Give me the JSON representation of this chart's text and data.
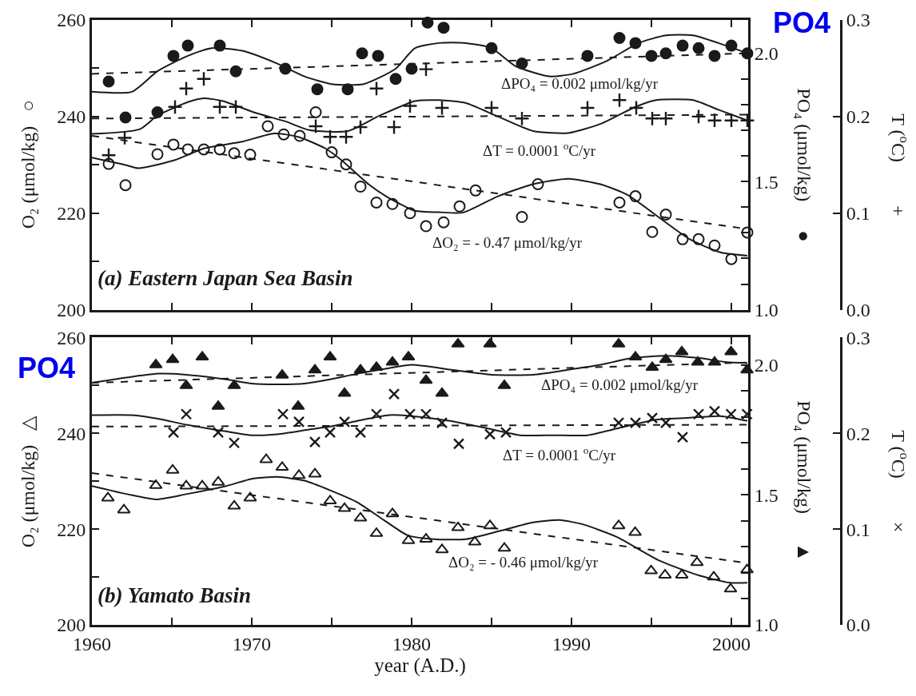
{
  "chart_data": [
    {
      "type": "scatter",
      "tick_labels": "y",
      "ylabel": "O₂ (μmol/kg)   ○",
      "y2label": "PO₄ (μmol/kg)      ●",
      "y3label": "T ($^{o}$C)         +",
      "xlim": [
        1960,
        2001.05
      ],
      "xticks": [
        1960,
        {
          "value": 1965,
          "label": null
        },
        1970,
        {
          "value": 1975,
          "label": null
        },
        1980,
        {
          "value": 1985,
          "label": null
        },
        1990,
        {
          "value": 1995,
          "label": null
        },
        2000
      ],
      "ylim": [
        200,
        260
      ],
      "yticks": [
        200,
        {
          "value": 210,
          "label": null
        },
        220,
        {
          "value": 230,
          "label": null
        },
        240,
        {
          "value": 250,
          "label": null
        },
        260
      ],
      "y2lim": [
        1.0,
        2.13
      ],
      "y2ticks": [
        {
          "value": 1.0,
          "label": "1.0"
        },
        {
          "value": 1.1,
          "label": null
        },
        {
          "value": 1.2,
          "label": null
        },
        {
          "value": 1.3,
          "label": null
        },
        {
          "value": 1.4,
          "label": null
        },
        {
          "value": 1.5,
          "label": "1.5"
        },
        {
          "value": 1.6,
          "label": null
        },
        {
          "value": 1.7,
          "label": null
        },
        {
          "value": 1.8,
          "label": null
        },
        {
          "value": 1.9,
          "label": null
        },
        {
          "value": 2.0,
          "label": "2.0"
        }
      ],
      "y3lim": [
        0.0,
        0.3
      ],
      "y3ticks": [
        {
          "value": 0.0,
          "label": "0.0"
        },
        0.1,
        0.2,
        0.3
      ],
      "annotations": [
        "(a) Eastern Japan Sea Basin",
        "ΔPO₄ = 0.002 μmol/kg/yr",
        "ΔT = 0.0001 $^{o}$C/yr",
        "ΔO₂ = - 0.47 μmol/kg/yr",
        "PO4"
      ],
      "series": [
        {
          "marker": "circle-open",
          "color": "#1a1a1a",
          "x": [
            1961.05,
            1962.1,
            1964.1,
            1965.1,
            1966.0,
            1967.0,
            1968.0,
            1968.9,
            1969.9,
            1971.0,
            1972.0,
            1973.0,
            1974.0,
            1975.0,
            1975.9,
            1976.8,
            1977.8,
            1978.8,
            1979.9,
            1980.9,
            1982.0,
            1983.0,
            1984.0,
            1986.9,
            1987.9,
            1993.0,
            1994.0,
            1995.05,
            1995.9,
            1996.95,
            1997.95,
            1998.95,
            2000.0,
            2001.0
          ],
          "values": [
            230.2,
            225.8,
            232.2,
            234.2,
            233.2,
            233.2,
            233.2,
            232.4,
            232.1,
            238.0,
            236.3,
            236.0,
            240.9,
            232.6,
            230.1,
            225.5,
            222.2,
            221.9,
            220.0,
            217.3,
            218.1,
            221.4,
            224.7,
            219.2,
            226.0,
            222.2,
            223.5,
            216.1,
            219.7,
            214.6,
            214.6,
            213.3,
            210.5,
            216.0
          ]
        },
        {
          "type": "line",
          "line_style": "solid",
          "color": "#1a1a1a",
          "x": [
            1960,
            1962.2,
            1962.9,
            1965.2,
            1967,
            1969.4,
            1971.4,
            1972.9,
            1974.6,
            1975.6,
            1977.3,
            1978.5,
            1980.2,
            1981.7,
            1983.2,
            1985.4,
            1987.6,
            1989.8,
            1991.8,
            1993.5,
            1995.6,
            1997.4,
            1999.3,
            2001
          ],
          "values": [
            231.5,
            229.9,
            229.3,
            231,
            233.4,
            234.8,
            236.5,
            235.8,
            233.4,
            231,
            226,
            223.3,
            220.5,
            220.2,
            220.1,
            223.5,
            226,
            227.1,
            226,
            223.8,
            218.8,
            214.6,
            211.9,
            211.2
          ]
        },
        {
          "type": "line",
          "line_style": "dashed",
          "color": "#1a1a1a",
          "x": [
            1960,
            2001
          ],
          "values": [
            236.0,
            216.7
          ]
        },
        {
          "axis": "y2",
          "marker": "circle",
          "color": "#1a1a1a",
          "x": [
            1961.05,
            1962.1,
            1964.1,
            1965.1,
            1966.0,
            1968.0,
            1969.0,
            1972.1,
            1974.1,
            1976.0,
            1976.9,
            1977.9,
            1979.0,
            1980.0,
            1981.0,
            1982.0,
            1985.0,
            1986.9,
            1991.0,
            1993.0,
            1994.0,
            1995.0,
            1995.9,
            1996.95,
            1997.95,
            1998.95,
            2000.0,
            2001.0
          ],
          "values": [
            1.89,
            1.75,
            1.77,
            1.99,
            2.03,
            2.03,
            1.93,
            1.94,
            1.86,
            1.86,
            2.0,
            1.99,
            1.9,
            1.94,
            2.12,
            2.1,
            2.02,
            1.96,
            1.99,
            2.06,
            2.04,
            1.99,
            2.0,
            2.03,
            2.02,
            1.99,
            2.03,
            2.0
          ]
        },
        {
          "type": "line",
          "axis": "y2",
          "line_style": "solid",
          "color": "#1a1a1a",
          "x": [
            1960,
            1962.5,
            1964.1,
            1966,
            1967.5,
            1969.4,
            1971.6,
            1973.3,
            1975,
            1977,
            1979,
            1980.2,
            1981.7,
            1983.4,
            1985,
            1986.5,
            1988.6,
            1990.1,
            1992.2,
            1994.2,
            1995.9,
            1997.6,
            1999.2,
            2001
          ],
          "values": [
            1.85,
            1.85,
            1.93,
            1.99,
            2.02,
            2.01,
            1.96,
            1.91,
            1.88,
            1.88,
            1.94,
            2.02,
            2.04,
            2.04,
            2.02,
            1.95,
            1.91,
            1.92,
            1.97,
            2.04,
            2.07,
            2.07,
            2.04,
            2.0
          ]
        },
        {
          "type": "line",
          "axis": "y2",
          "line_style": "dashed",
          "color": "#1a1a1a",
          "x": [
            1960,
            2001
          ],
          "values": [
            1.92,
            2.0
          ]
        },
        {
          "axis": "y3",
          "marker": "cross",
          "color": "#1a1a1a",
          "x": [
            1961.05,
            1962.05,
            1964.1,
            1965.2,
            1965.9,
            1967.0,
            1968.0,
            1969.0,
            1974.0,
            1974.9,
            1975.9,
            1976.8,
            1977.8,
            1978.9,
            1979.9,
            1980.9,
            1981.9,
            1985.0,
            1986.9,
            1991.0,
            1993.0,
            1994.05,
            1995.05,
            1995.9,
            1997.95,
            1998.95,
            2000.0,
            2001.0
          ],
          "values": [
            0.16,
            0.178,
            null,
            0.21,
            0.229,
            0.239,
            0.21,
            0.21,
            0.19,
            0.179,
            0.179,
            0.189,
            0.229,
            0.189,
            0.211,
            0.249,
            0.209,
            0.209,
            0.198,
            0.209,
            0.217,
            0.209,
            0.198,
            0.198,
            0.2,
            0.196,
            0.196,
            0.196
          ]
        },
        {
          "type": "line",
          "axis": "y3",
          "line_style": "solid",
          "color": "#1a1a1a",
          "x": [
            1960,
            1963,
            1964.1,
            1966,
            1967,
            1968.2,
            1970.2,
            1972.1,
            1973.6,
            1976,
            1978,
            1980.2,
            1981.7,
            1983.4,
            1985.4,
            1987.6,
            1989.8,
            1991.9,
            1994,
            1995.3,
            1997.6,
            1999.2,
            2001
          ],
          "values": [
            0.182,
            0.187,
            0.201,
            0.215,
            0.219,
            0.216,
            0.204,
            0.195,
            0.186,
            0.185,
            0.201,
            0.216,
            0.217,
            0.214,
            0.2,
            0.185,
            0.183,
            0.193,
            0.21,
            0.217,
            0.217,
            0.207,
            0.196
          ]
        },
        {
          "type": "line",
          "axis": "y3",
          "line_style": "dashed",
          "color": "#1a1a1a",
          "x": [
            1960,
            2001
          ],
          "values": [
            0.198,
            0.202
          ]
        }
      ]
    },
    {
      "type": "scatter",
      "xlabel": "year (A.D.)",
      "ylabel": "O₂ (μmol/kg)   △",
      "y2label": "PO₄ (μmol/kg)      ▲",
      "y3label": "T ($^{o}$C)         ×",
      "xlim": [
        1960,
        2001.05
      ],
      "xticks": [
        1960,
        {
          "value": 1965,
          "label": null
        },
        1970,
        {
          "value": 1975,
          "label": null
        },
        1980,
        {
          "value": 1985,
          "label": null
        },
        1990,
        {
          "value": 1995,
          "label": null
        },
        2000
      ],
      "ylim": [
        200,
        260
      ],
      "yticks": [
        200,
        {
          "value": 210,
          "label": null
        },
        220,
        {
          "value": 230,
          "label": null
        },
        240,
        {
          "value": 250,
          "label": null
        },
        260
      ],
      "y2lim": [
        1.0,
        2.105
      ],
      "y2ticks": [
        {
          "value": 1.0,
          "label": "1.0"
        },
        {
          "value": 1.1,
          "label": null
        },
        {
          "value": 1.2,
          "label": null
        },
        {
          "value": 1.3,
          "label": null
        },
        {
          "value": 1.4,
          "label": null
        },
        {
          "value": 1.5,
          "label": "1.5"
        },
        {
          "value": 1.6,
          "label": null
        },
        {
          "value": 1.7,
          "label": null
        },
        {
          "value": 1.8,
          "label": null
        },
        {
          "value": 1.9,
          "label": null
        },
        {
          "value": 2.0,
          "label": "2.0"
        }
      ],
      "y3lim": [
        0.0,
        0.3
      ],
      "y3ticks": [
        {
          "value": 0.0,
          "label": "0.0"
        },
        0.1,
        0.2,
        0.3
      ],
      "annotations": [
        "(b) Yamato Basin",
        "ΔPO₄ = 0.002 μmol/kg/yr",
        "ΔT = 0.0001 $^{o}$C/yr",
        "ΔO₂ = - 0.46 μmol/kg/yr",
        "PO4"
      ],
      "series": [
        {
          "marker": "triangle-open",
          "color": "#1a1a1a",
          "x": [
            1961.0,
            1962.0,
            1964.0,
            1965.05,
            1965.9,
            1966.9,
            1967.9,
            1968.9,
            1969.9,
            1970.9,
            1971.9,
            1972.95,
            1973.95,
            1974.9,
            1975.8,
            1976.8,
            1977.8,
            1978.8,
            1979.8,
            1980.9,
            1981.9,
            1982.9,
            1983.95,
            1984.9,
            1985.8,
            1992.95,
            1993.98,
            1994.98,
            1995.85,
            1996.9,
            1997.85,
            1998.9,
            1999.95,
            2000.98
          ],
          "values": [
            226.5,
            224.0,
            229.1,
            232.3,
            229.0,
            229.0,
            229.8,
            224.8,
            226.5,
            234.5,
            232.9,
            231.2,
            231.5,
            225.9,
            224.3,
            222.3,
            219.1,
            223.2,
            217.6,
            217.9,
            215.7,
            220.3,
            217.3,
            220.7,
            216.0,
            220.7,
            219.3,
            211.3,
            210.4,
            210.4,
            213.0,
            210.0,
            207.5,
            211.5
          ]
        },
        {
          "type": "line",
          "line_style": "solid",
          "color": "#1a1a1a",
          "x": [
            1960,
            1962.2,
            1964.0,
            1965.9,
            1968.4,
            1970,
            1971.6,
            1973.3,
            1974.9,
            1976.6,
            1978.3,
            1979.75,
            1981.4,
            1983.4,
            1985.5,
            1987.6,
            1989.25,
            1990.7,
            1992.8,
            1995.5,
            1998,
            1999.9,
            2001
          ],
          "values": [
            229.0,
            227.3,
            226.2,
            227.3,
            229.0,
            230.5,
            230.9,
            230.1,
            228.1,
            225.6,
            221.8,
            218.7,
            217.9,
            217.9,
            219.6,
            221.4,
            221.9,
            221.0,
            218.4,
            213.4,
            210.3,
            208.8,
            208.8
          ]
        },
        {
          "type": "line",
          "line_style": "dashed",
          "color": "#1a1a1a",
          "x": [
            1960,
            2001
          ],
          "values": [
            231.7,
            212.9
          ]
        },
        {
          "axis": "y2",
          "marker": "triangle",
          "color": "#1a1a1a",
          "x": [
            1964.0,
            1965.05,
            1965.9,
            1966.9,
            1967.9,
            1968.9,
            1971.9,
            1972.9,
            1973.95,
            1974.9,
            1975.8,
            1976.8,
            1977.8,
            1978.8,
            1979.8,
            1980.9,
            1981.9,
            1982.9,
            1984.9,
            1985.8,
            1992.95,
            1994.0,
            1995.05,
            1995.9,
            1996.9,
            1997.9,
            1998.95,
            1999.98,
            2000.98
          ],
          "values": [
            2.0,
            2.02,
            1.92,
            2.03,
            1.84,
            1.92,
            1.96,
            1.84,
            1.98,
            2.03,
            1.89,
            1.98,
            1.99,
            2.01,
            2.03,
            1.94,
            1.89,
            2.08,
            2.08,
            1.92,
            2.08,
            2.03,
            1.99,
            2.02,
            2.05,
            2.01,
            2.01,
            2.05,
            1.98
          ]
        },
        {
          "type": "line",
          "axis": "y2",
          "line_style": "solid",
          "color": "#1a1a1a",
          "x": [
            1960,
            1962.5,
            1964.2,
            1965.9,
            1968.4,
            1970,
            1971.6,
            1973.3,
            1974.9,
            1976.6,
            1978.3,
            1980,
            1982.6,
            1985,
            1987.6,
            1989.7,
            1991.8,
            1993.8,
            1995.9,
            1998,
            1999.7,
            2001
          ],
          "values": [
            1.931,
            1.954,
            1.966,
            1.962,
            1.944,
            1.928,
            1.925,
            1.928,
            1.944,
            1.966,
            1.984,
            2.0,
            1.98,
            1.962,
            1.962,
            1.98,
            2.0,
            2.026,
            2.035,
            2.026,
            2.01,
            2.007
          ]
        },
        {
          "type": "line",
          "axis": "y2",
          "line_style": "dashed",
          "color": "#1a1a1a",
          "x": [
            1960,
            2001
          ],
          "values": [
            1.931,
            2.009
          ]
        },
        {
          "axis": "y3",
          "marker": "x",
          "color": "#1a1a1a",
          "x": [
            1965.1,
            1965.9,
            1967.9,
            1968.9,
            1971.95,
            1972.95,
            1973.95,
            1974.9,
            1975.8,
            1976.8,
            1977.8,
            1978.9,
            1979.9,
            1980.9,
            1981.9,
            1982.95,
            1984.9,
            1985.9,
            1992.95,
            1994.0,
            1995.05,
            1995.9,
            1996.95,
            1997.95,
            1998.95,
            1999.98,
            2000.98
          ],
          "values": [
            0.201,
            0.22,
            0.201,
            0.19,
            0.22,
            0.212,
            0.191,
            0.201,
            0.212,
            0.201,
            0.22,
            0.241,
            0.22,
            0.22,
            0.211,
            0.189,
            0.199,
            0.201,
            0.211,
            0.211,
            0.216,
            0.211,
            0.196,
            0.22,
            0.223,
            0.22,
            0.22
          ]
        },
        {
          "type": "line",
          "axis": "y3",
          "line_style": "solid",
          "color": "#1a1a1a",
          "x": [
            1960,
            1962.5,
            1964.2,
            1965.9,
            1968.4,
            1970,
            1971.6,
            1973.6,
            1974.9,
            1976.6,
            1978.6,
            1980,
            1982.4,
            1984.5,
            1986.8,
            1988.9,
            1991,
            1993.1,
            1995.2,
            1997.2,
            1999.3,
            2001
          ],
          "values": [
            0.219,
            0.219,
            0.215,
            0.209,
            0.202,
            0.198,
            0.199,
            0.204,
            0.207,
            0.213,
            0.219,
            0.218,
            0.213,
            0.206,
            0.198,
            0.198,
            0.198,
            0.206,
            0.214,
            0.216,
            0.218,
            0.213
          ]
        },
        {
          "type": "line",
          "axis": "y3",
          "line_style": "dashed",
          "color": "#1a1a1a",
          "x": [
            1960,
            2001
          ],
          "values": [
            0.207,
            0.209
          ]
        }
      ]
    }
  ]
}
